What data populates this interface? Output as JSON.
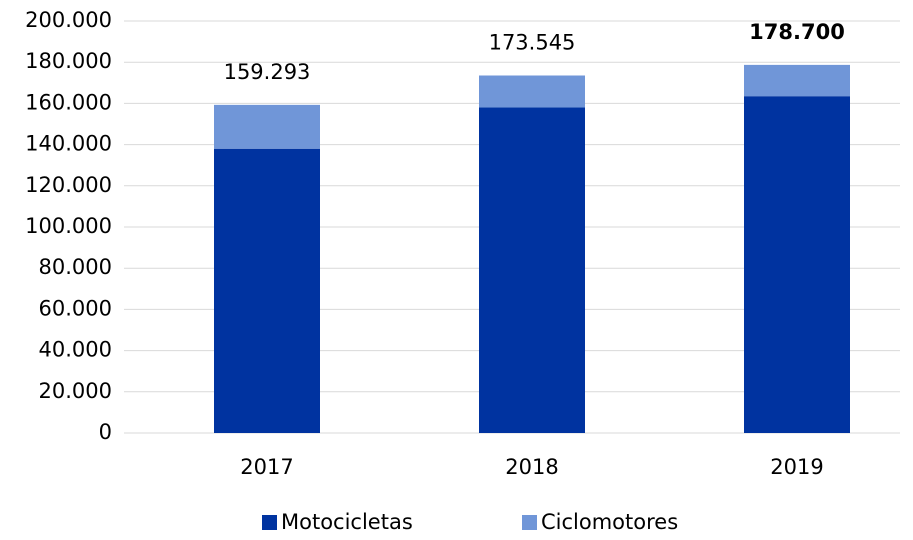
{
  "chart_data": {
    "type": "bar",
    "categories": [
      "2017",
      "2018",
      "2019"
    ],
    "series": [
      {
        "name": "Motocicletas",
        "color": "#0033a0",
        "values": [
          138000,
          158000,
          163500
        ]
      },
      {
        "name": "Ciclomotores",
        "color": "#7096d8",
        "values": [
          21293,
          15545,
          15200
        ]
      }
    ],
    "totals": [
      159293,
      173545,
      178700
    ],
    "total_labels": [
      "159.293",
      "173.545",
      "178.700"
    ],
    "ylim": [
      0,
      200000
    ],
    "yticks": [
      0,
      {
        "value": 20000,
        "label": "20.000"
      },
      {
        "value": 40000,
        "label": "40.000"
      },
      {
        "value": 60000,
        "label": "60.000"
      },
      {
        "value": 80000,
        "label": "80.000"
      },
      {
        "value": 100000,
        "label": "100.000"
      },
      {
        "value": 120000,
        "label": "120.000"
      },
      {
        "value": 140000,
        "label": "140.000"
      },
      {
        "value": 160000,
        "label": "160.000"
      },
      {
        "value": 180000,
        "label": "180.000"
      },
      {
        "value": 200000,
        "label": "200.000"
      }
    ],
    "grid": true,
    "legend": "bottom"
  }
}
